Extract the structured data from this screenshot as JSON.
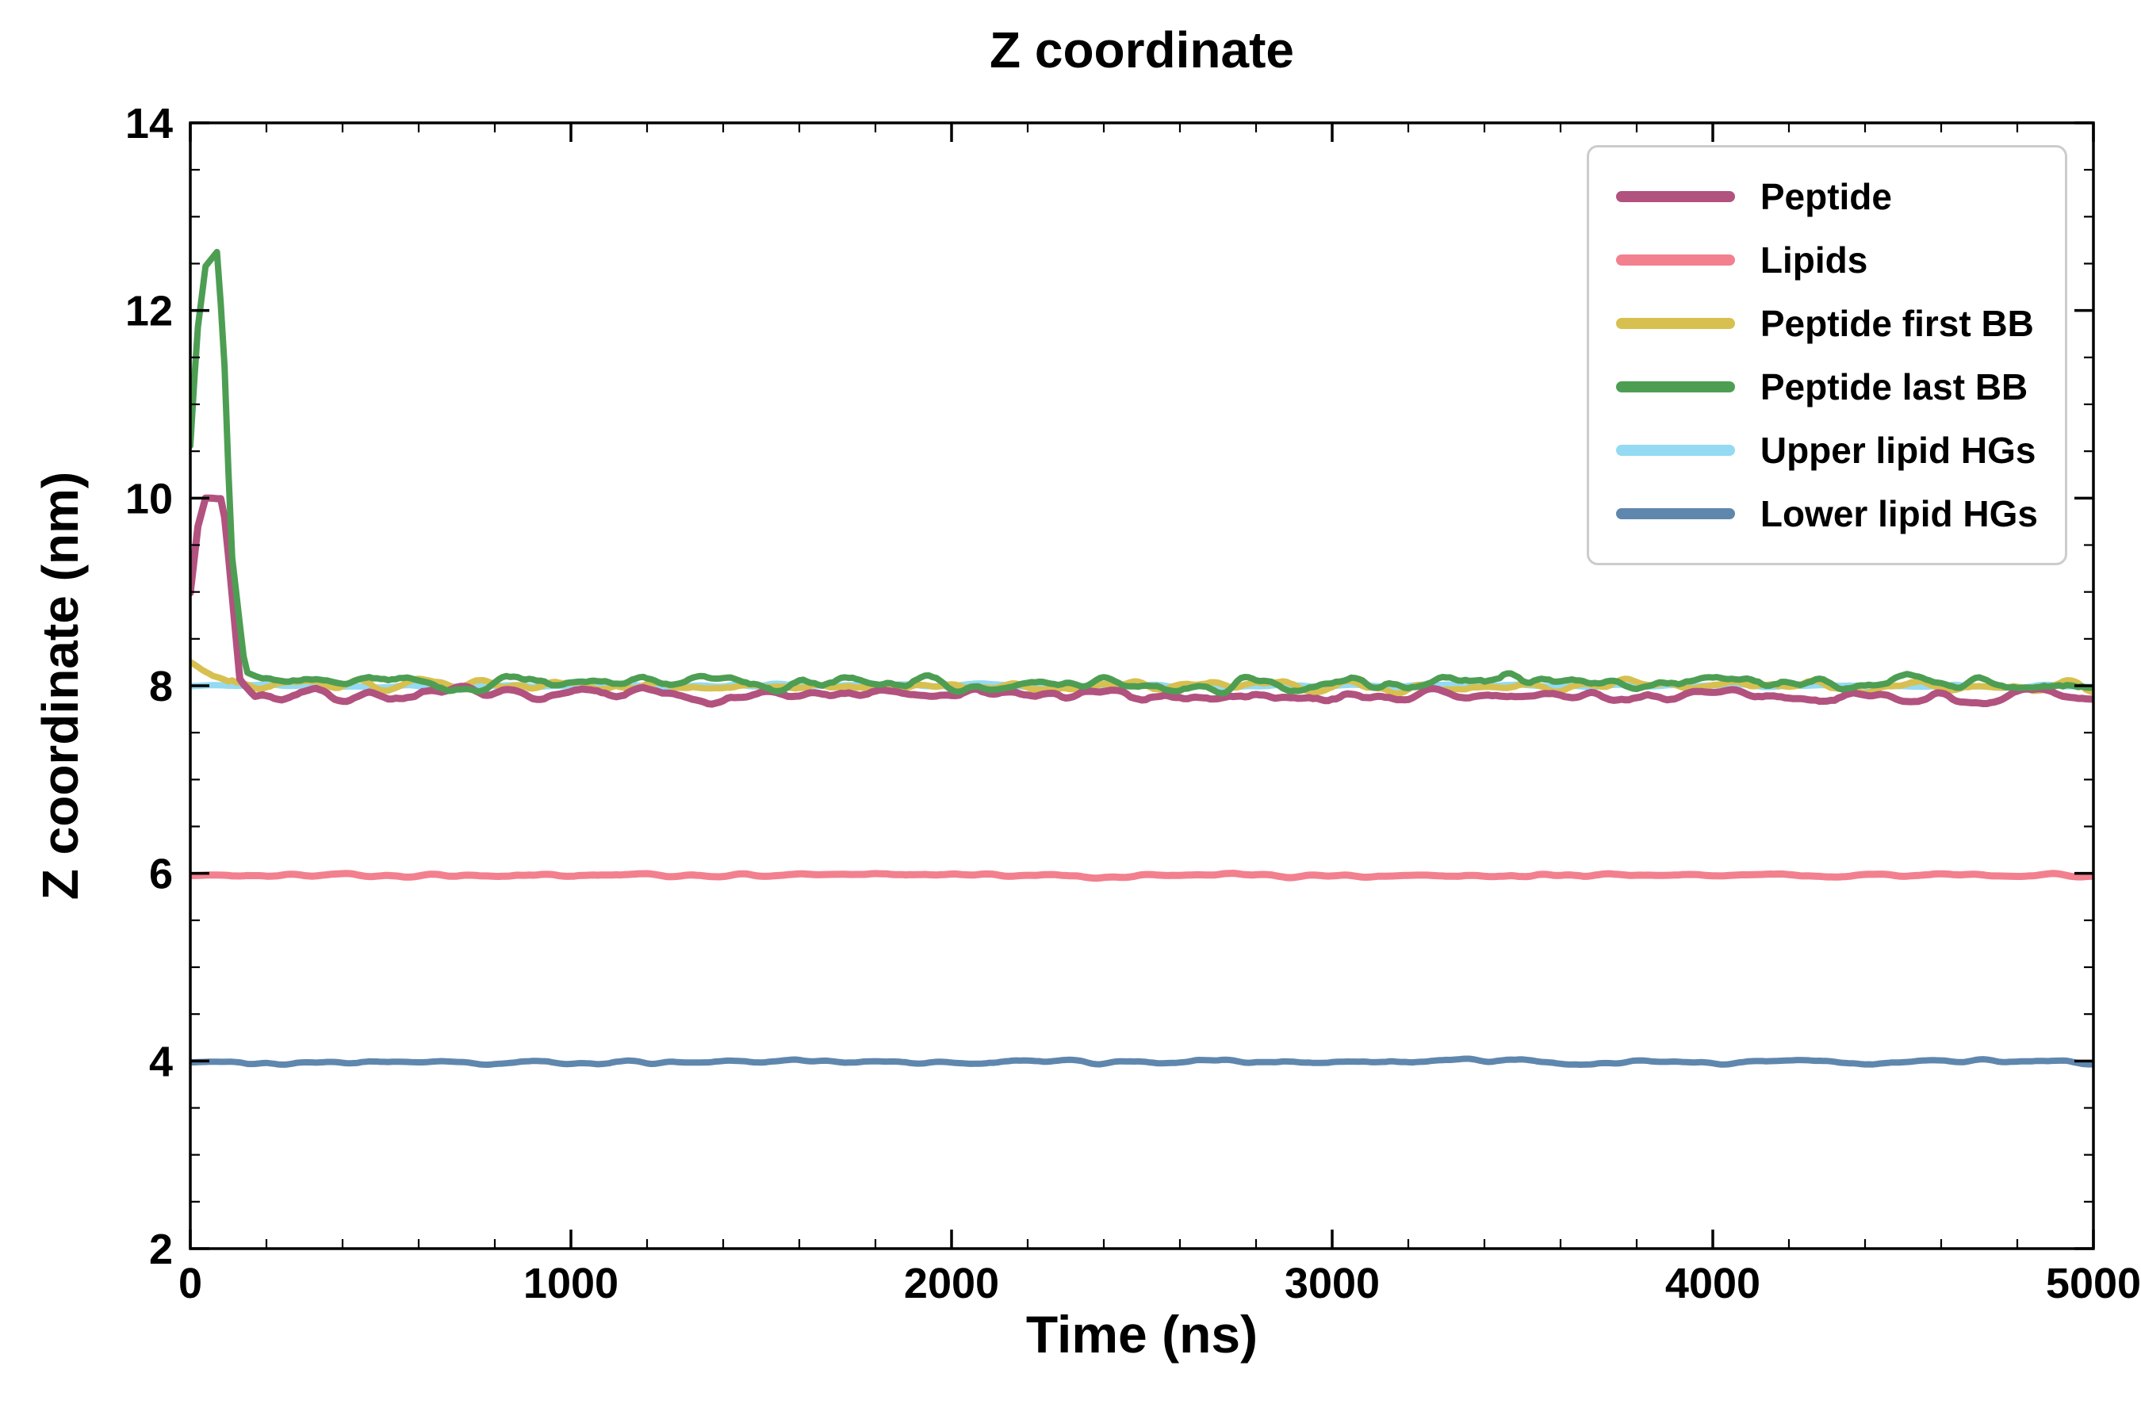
{
  "chart_data": {
    "type": "line",
    "title": "Z coordinate",
    "xlabel": "Time (ns)",
    "ylabel": "Z coordinate (nm)",
    "xlim": [
      0,
      5000
    ],
    "ylim": [
      2,
      14
    ],
    "xticks": [
      0,
      1000,
      2000,
      3000,
      4000,
      5000
    ],
    "yticks": [
      2,
      4,
      6,
      8,
      10,
      12,
      14
    ],
    "x_minor_step": 200,
    "y_minor_step": 0.5,
    "grid": false,
    "legend_position": "upper right",
    "background_color": "#ffffff",
    "spine_color": "#000000",
    "legend_border_color": "#cccccc",
    "series": [
      {
        "name": "Peptide",
        "color": "#b2527f",
        "linewidth": 9,
        "zorder": 5,
        "seed": 7,
        "noise_amp": 0.07,
        "initial_peak": 10.0,
        "equilibrium": 7.9,
        "anchors": [
          [
            0,
            9.0
          ],
          [
            20,
            9.7
          ],
          [
            40,
            10.0
          ],
          [
            85,
            10.0
          ],
          [
            105,
            9.2
          ],
          [
            130,
            8.1
          ],
          [
            170,
            7.9
          ],
          [
            5000,
            7.88
          ]
        ]
      },
      {
        "name": "Lipids",
        "color": "#f2808f",
        "linewidth": 9,
        "zorder": 3,
        "seed": 21,
        "noise_amp": 0.022,
        "equilibrium": 6.0,
        "anchors": [
          [
            0,
            5.98
          ],
          [
            5000,
            5.98
          ]
        ]
      },
      {
        "name": "Peptide first BB",
        "color": "#d7c050",
        "linewidth": 8,
        "zorder": 4,
        "seed": 33,
        "noise_amp": 0.065,
        "equilibrium": 8.0,
        "anchors": [
          [
            0,
            8.25
          ],
          [
            60,
            8.1
          ],
          [
            120,
            8.0
          ],
          [
            5000,
            7.98
          ]
        ]
      },
      {
        "name": "Peptide last BB",
        "color": "#4d9e53",
        "linewidth": 8,
        "zorder": 6,
        "seed": 51,
        "noise_amp": 0.09,
        "initial_peak": 12.6,
        "equilibrium": 8.0,
        "anchors": [
          [
            0,
            10.6
          ],
          [
            18,
            11.8
          ],
          [
            40,
            12.5
          ],
          [
            70,
            12.62
          ],
          [
            88,
            11.6
          ],
          [
            108,
            9.4
          ],
          [
            145,
            8.2
          ],
          [
            190,
            8.05
          ],
          [
            5000,
            8.02
          ]
        ]
      },
      {
        "name": "Upper lipid HGs",
        "color": "#94daf2",
        "linewidth": 8,
        "zorder": 1,
        "seed": 60,
        "noise_amp": 0.018,
        "equilibrium": 8.0,
        "anchors": [
          [
            0,
            8.0
          ],
          [
            5000,
            8.0
          ]
        ]
      },
      {
        "name": "Lower lipid HGs",
        "color": "#5f87ae",
        "linewidth": 8,
        "zorder": 2,
        "seed": 77,
        "noise_amp": 0.025,
        "equilibrium": 4.0,
        "anchors": [
          [
            0,
            3.99
          ],
          [
            5000,
            3.99
          ]
        ]
      }
    ]
  }
}
